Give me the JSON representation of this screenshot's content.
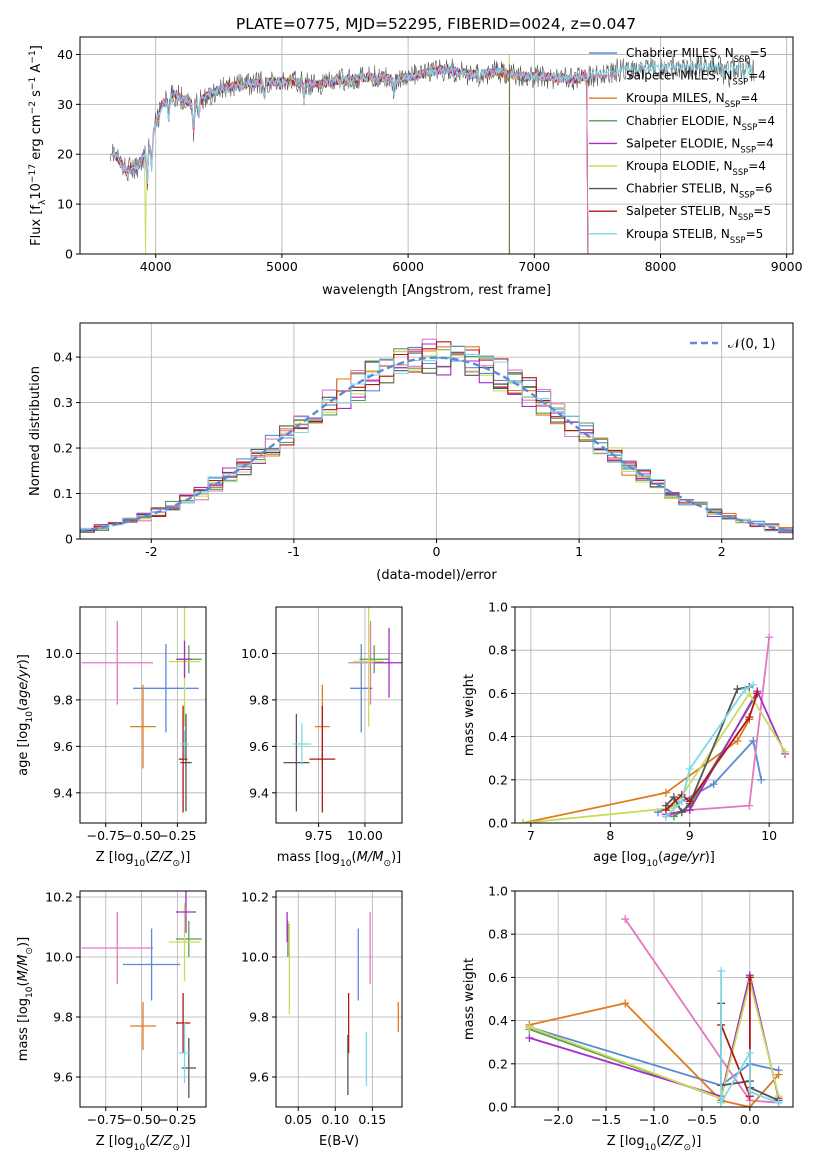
{
  "title": "PLATE=0775, MJD=52295, FIBERID=0024, z=0.047",
  "colors": {
    "chabrier_miles": "#5b8bd6",
    "salpeter_miles": "#e377c2",
    "kroupa_miles": "#e07b1f",
    "chabrier_elodie": "#5a9a5a",
    "salpeter_elodie": "#a52ec4",
    "kroupa_elodie": "#c8dc5a",
    "chabrier_stelib": "#555555",
    "salpeter_stelib": "#b01818",
    "kroupa_stelib": "#7fd8e8",
    "normal": "#5b8bd6"
  },
  "chart_data": [
    {
      "type": "line",
      "panel": "spectrum",
      "xlabel": "wavelength [Angstrom, rest frame]",
      "ylabel": "Flux [fλ10⁻¹⁷ erg cm⁻² s⁻¹ A⁻¹]",
      "xlim": [
        3400,
        9050
      ],
      "ylim": [
        0,
        43.5
      ],
      "xticks": [
        4000,
        5000,
        6000,
        7000,
        8000,
        9000
      ],
      "yticks": [
        0,
        10,
        20,
        30,
        40
      ],
      "legend_position": "right",
      "legend": [
        {
          "label": "Chabrier MILES, N",
          "sub": "SSP",
          "suffix": "=5",
          "color": "chabrier_miles"
        },
        {
          "label": "Salpeter MILES, N",
          "sub": "SSP",
          "suffix": "=4",
          "color": "salpeter_miles"
        },
        {
          "label": "Kroupa MILES, N",
          "sub": "SSP",
          "suffix": "=4",
          "color": "kroupa_miles"
        },
        {
          "label": "Chabrier ELODIE, N",
          "sub": "SSP",
          "suffix": "=4",
          "color": "chabrier_elodie"
        },
        {
          "label": "Salpeter ELODIE, N",
          "sub": "SSP",
          "suffix": "=4",
          "color": "salpeter_elodie"
        },
        {
          "label": "Kroupa ELODIE, N",
          "sub": "SSP",
          "suffix": "=4",
          "color": "kroupa_elodie"
        },
        {
          "label": "Chabrier STELIB, N",
          "sub": "SSP",
          "suffix": "=6",
          "color": "chabrier_stelib"
        },
        {
          "label": "Salpeter STELIB, N",
          "sub": "SSP",
          "suffix": "=5",
          "color": "salpeter_stelib"
        },
        {
          "label": "Kroupa STELIB, N",
          "sub": "SSP",
          "suffix": "=5",
          "color": "kroupa_stelib"
        }
      ],
      "continuum": {
        "x": [
          3650,
          3750,
          3850,
          3950,
          4050,
          4150,
          4300,
          4500,
          4700,
          4900,
          5100,
          5300,
          5500,
          5700,
          5900,
          6100,
          6300,
          6500,
          6700,
          6900,
          7100,
          7300,
          7500,
          7700,
          7900,
          8100,
          8300,
          8500,
          8700
        ],
        "y": [
          21,
          17,
          17,
          22,
          30,
          32,
          30,
          33,
          34,
          34.5,
          34.5,
          34,
          35,
          35.5,
          35,
          36,
          37,
          36,
          36.5,
          35.5,
          35.5,
          35,
          36,
          37,
          37.5,
          37.5,
          37.5,
          37.5,
          37
        ]
      }
    },
    {
      "type": "histogram",
      "panel": "residuals",
      "xlabel": "(data-model)/error",
      "ylabel": "Normed distribution",
      "xlim": [
        -2.5,
        2.5
      ],
      "ylim": [
        0,
        0.475
      ],
      "xticks": [
        -2,
        -1,
        0,
        1,
        2
      ],
      "yticks": [
        0.0,
        0.1,
        0.2,
        0.3,
        0.4
      ],
      "bin_width": 0.1,
      "legend_position": "upper right",
      "reference_curve": {
        "label": "𝒩(0, 1)",
        "color": "normal",
        "style": "dashed"
      }
    },
    {
      "type": "scatter",
      "panel": "age-vs-Z",
      "xlabel": "Z [log₁₀(Z/Z⊙)]",
      "ylabel": "age  [log₁₀(age/yr)]",
      "xlim": [
        -0.93,
        -0.05
      ],
      "ylim": [
        9.27,
        10.2
      ],
      "xticks": [
        -0.75,
        -0.5,
        -0.25
      ],
      "xticklabels": [
        "−0.75",
        "−0.50",
        "−0.25"
      ],
      "yticks": [
        9.4,
        9.6,
        9.8,
        10.0
      ],
      "yticklabels": [
        "9.4",
        "9.6",
        "9.8",
        "10.0"
      ],
      "points": [
        {
          "color": "salpeter_miles",
          "x": -0.67,
          "xerr": 0.25,
          "y": 9.96,
          "yerr": 0.18
        },
        {
          "color": "chabrier_miles",
          "x": -0.33,
          "xerr": 0.23,
          "y": 9.85,
          "yerr": 0.19
        },
        {
          "color": "kroupa_miles",
          "x": -0.49,
          "xerr": 0.09,
          "y": 9.685,
          "yerr": 0.18
        },
        {
          "color": "chabrier_elodie",
          "x": -0.17,
          "xerr": 0.09,
          "y": 9.975,
          "yerr": 0.06
        },
        {
          "color": "kroupa_elodie",
          "x": -0.2,
          "xerr": 0.11,
          "y": 9.965,
          "yerr": 0.28
        },
        {
          "color": "salpeter_elodie",
          "x": -0.2,
          "xerr": 0.05,
          "y": 9.975,
          "yerr": 0.08
        },
        {
          "color": "chabrier_stelib",
          "x": -0.19,
          "xerr": 0.04,
          "y": 9.53,
          "yerr": 0.21
        },
        {
          "color": "salpeter_stelib",
          "x": -0.21,
          "xerr": 0.03,
          "y": 9.545,
          "yerr": 0.23
        },
        {
          "color": "kroupa_stelib",
          "x": -0.2,
          "xerr": 0.03,
          "y": 9.61,
          "yerr": 0.06
        }
      ]
    },
    {
      "type": "scatter",
      "panel": "age-vs-mass",
      "xlabel": "mass [log₁₀(M/M⊙)]",
      "ylabel": "",
      "xlim": [
        9.52,
        10.2
      ],
      "ylim": [
        9.27,
        10.2
      ],
      "xticks": [
        9.75,
        10.0
      ],
      "xticklabels": [
        "9.75",
        "10.00"
      ],
      "yticks": [
        9.4,
        9.6,
        9.8,
        10.0
      ],
      "yticklabels": [
        "9.4",
        "9.6",
        "9.8",
        "10.0"
      ],
      "points": [
        {
          "color": "salpeter_miles",
          "x": 10.03,
          "xerr": 0.12,
          "y": 9.96,
          "yerr": 0.18
        },
        {
          "color": "chabrier_miles",
          "x": 9.98,
          "xerr": 0.06,
          "y": 9.85,
          "yerr": 0.19
        },
        {
          "color": "kroupa_miles",
          "x": 9.77,
          "xerr": 0.04,
          "y": 9.685,
          "yerr": 0.18
        },
        {
          "color": "chabrier_elodie",
          "x": 10.05,
          "xerr": 0.08,
          "y": 9.975,
          "yerr": 0.06
        },
        {
          "color": "kroupa_elodie",
          "x": 10.02,
          "xerr": 0.08,
          "y": 9.965,
          "yerr": 0.28
        },
        {
          "color": "salpeter_elodie",
          "x": 10.13,
          "xerr": 0.08,
          "y": 9.96,
          "yerr": 0.15
        },
        {
          "color": "chabrier_stelib",
          "x": 9.63,
          "xerr": 0.07,
          "y": 9.53,
          "yerr": 0.21
        },
        {
          "color": "salpeter_stelib",
          "x": 9.77,
          "xerr": 0.07,
          "y": 9.545,
          "yerr": 0.23
        },
        {
          "color": "kroupa_stelib",
          "x": 9.66,
          "xerr": 0.05,
          "y": 9.61,
          "yerr": 0.09
        }
      ]
    },
    {
      "type": "line",
      "panel": "weight-vs-age",
      "xlabel": "age  [log₁₀(age/yr)]",
      "ylabel": "mass weight",
      "xlim": [
        6.8,
        10.3
      ],
      "ylim": [
        0,
        1
      ],
      "xticks": [
        7,
        8,
        9,
        10
      ],
      "xticklabels": [
        "7",
        "8",
        "9",
        "10"
      ],
      "yticks": [
        0,
        0.2,
        0.4,
        0.6,
        0.8,
        1.0
      ],
      "yticklabels": [
        "0.0",
        "0.2",
        "0.4",
        "0.6",
        "0.8",
        "1.0"
      ],
      "series": [
        {
          "color": "chabrier_miles",
          "x": [
            8.6,
            8.9,
            9.3,
            9.8,
            9.9
          ],
          "y": [
            0.05,
            0.1,
            0.18,
            0.38,
            0.2
          ]
        },
        {
          "color": "salpeter_miles",
          "x": [
            8.7,
            9.0,
            9.75,
            10.0
          ],
          "y": [
            0.03,
            0.06,
            0.08,
            0.86
          ]
        },
        {
          "color": "kroupa_miles",
          "x": [
            6.9,
            8.7,
            9.6,
            9.75
          ],
          "y": [
            0.0,
            0.14,
            0.38,
            0.48
          ]
        },
        {
          "color": "chabrier_elodie",
          "x": [
            8.8,
            9.0,
            9.85
          ],
          "y": [
            0.03,
            0.08,
            0.6
          ]
        },
        {
          "color": "salpeter_elodie",
          "x": [
            8.7,
            9.0,
            9.85,
            10.2
          ],
          "y": [
            0.04,
            0.06,
            0.61,
            0.32
          ]
        },
        {
          "color": "kroupa_elodie",
          "x": [
            6.9,
            8.8,
            9.75,
            10.2
          ],
          "y": [
            0.0,
            0.07,
            0.6,
            0.33
          ]
        },
        {
          "color": "chabrier_stelib",
          "x": [
            8.7,
            8.8,
            8.9,
            9.0,
            9.6,
            9.75
          ],
          "y": [
            0.08,
            0.12,
            0.05,
            0.09,
            0.62,
            0.63
          ]
        },
        {
          "color": "salpeter_stelib",
          "x": [
            8.7,
            8.9,
            9.0,
            9.75,
            9.85
          ],
          "y": [
            0.06,
            0.13,
            0.1,
            0.49,
            0.6
          ]
        },
        {
          "color": "kroupa_stelib",
          "x": [
            8.7,
            8.9,
            9.0,
            9.7,
            9.8
          ],
          "y": [
            0.03,
            0.1,
            0.25,
            0.62,
            0.64
          ]
        }
      ]
    },
    {
      "type": "scatter",
      "panel": "mass-vs-Z",
      "xlabel": "Z [log₁₀(Z/Z⊙)]",
      "ylabel": "mass [log₁₀(M/M⊙)]",
      "xlim": [
        -0.93,
        -0.05
      ],
      "ylim": [
        9.5,
        10.22
      ],
      "xticks": [
        -0.75,
        -0.5,
        -0.25
      ],
      "xticklabels": [
        "−0.75",
        "−0.50",
        "−0.25"
      ],
      "yticks": [
        9.6,
        9.8,
        10.0,
        10.2
      ],
      "yticklabels": [
        "9.6",
        "9.8",
        "10.0",
        "10.2"
      ],
      "points": [
        {
          "color": "salpeter_miles",
          "x": -0.67,
          "xerr": 0.25,
          "y": 10.03,
          "yerr": 0.12
        },
        {
          "color": "chabrier_miles",
          "x": -0.43,
          "xerr": 0.2,
          "y": 9.975,
          "yerr": 0.12
        },
        {
          "color": "kroupa_miles",
          "x": -0.49,
          "xerr": 0.09,
          "y": 9.77,
          "yerr": 0.08
        },
        {
          "color": "chabrier_elodie",
          "x": -0.17,
          "xerr": 0.09,
          "y": 10.06,
          "yerr": 0.06
        },
        {
          "color": "kroupa_elodie",
          "x": -0.2,
          "xerr": 0.11,
          "y": 10.05,
          "yerr": 0.13
        },
        {
          "color": "salpeter_elodie",
          "x": -0.19,
          "xerr": 0.07,
          "y": 10.15,
          "yerr": 0.07
        },
        {
          "color": "chabrier_stelib",
          "x": -0.17,
          "xerr": 0.05,
          "y": 9.63,
          "yerr": 0.1
        },
        {
          "color": "salpeter_stelib",
          "x": -0.21,
          "xerr": 0.05,
          "y": 9.78,
          "yerr": 0.1
        },
        {
          "color": "kroupa_stelib",
          "x": -0.2,
          "xerr": 0.04,
          "y": 9.68,
          "yerr": 0.1
        }
      ]
    },
    {
      "type": "scatter",
      "panel": "mass-vs-EBV",
      "xlabel": "E(B-V)",
      "ylabel": "",
      "xlim": [
        0.02,
        0.19
      ],
      "ylim": [
        9.5,
        10.22
      ],
      "xticks": [
        0.05,
        0.1,
        0.15
      ],
      "xticklabels": [
        "0.05",
        "0.10",
        "0.15"
      ],
      "yticks": [
        9.6,
        9.8,
        10.0,
        10.2
      ],
      "yticklabels": [
        "9.6",
        "9.8",
        "10.0",
        "10.2"
      ],
      "points": [
        {
          "color": "salpeter_miles",
          "x": 0.147,
          "xerr": 0,
          "y": 10.03,
          "yerr": 0.12
        },
        {
          "color": "chabrier_miles",
          "x": 0.131,
          "xerr": 0,
          "y": 9.975,
          "yerr": 0.12
        },
        {
          "color": "kroupa_miles",
          "x": 0.185,
          "xerr": 0,
          "y": 9.8,
          "yerr": 0.05
        },
        {
          "color": "chabrier_elodie",
          "x": 0.036,
          "xerr": 0,
          "y": 10.06,
          "yerr": 0.06
        },
        {
          "color": "kroupa_elodie",
          "x": 0.038,
          "xerr": 0,
          "y": 9.96,
          "yerr": 0.15
        },
        {
          "color": "salpeter_elodie",
          "x": 0.035,
          "xerr": 0,
          "y": 10.1,
          "yerr": 0.05
        },
        {
          "color": "chabrier_stelib",
          "x": 0.117,
          "xerr": 0,
          "y": 9.64,
          "yerr": 0.1
        },
        {
          "color": "salpeter_stelib",
          "x": 0.118,
          "xerr": 0,
          "y": 9.78,
          "yerr": 0.1
        },
        {
          "color": "kroupa_stelib",
          "x": 0.142,
          "xerr": 0,
          "y": 9.66,
          "yerr": 0.09
        }
      ]
    },
    {
      "type": "line",
      "panel": "weight-vs-Z",
      "xlabel": "Z [log₁₀(Z/Z⊙)]",
      "ylabel": "mass weight",
      "xlim": [
        -2.45,
        0.45
      ],
      "ylim": [
        0,
        1
      ],
      "xticks": [
        -2.0,
        -1.5,
        -1.0,
        -0.5,
        0.0
      ],
      "xticklabels": [
        "−2.0",
        "−1.5",
        "−1.0",
        "−0.5",
        "0.0"
      ],
      "yticks": [
        0,
        0.2,
        0.4,
        0.6,
        0.8,
        1.0
      ],
      "yticklabels": [
        "0.0",
        "0.2",
        "0.4",
        "0.6",
        "0.8",
        "1.0"
      ],
      "series": [
        {
          "color": "chabrier_miles",
          "x": [
            -2.3,
            -0.3,
            0.0,
            0.3
          ],
          "y": [
            0.37,
            0.1,
            0.2,
            0.17
          ]
        },
        {
          "color": "salpeter_miles",
          "x": [
            -1.3,
            0.0,
            0.3
          ],
          "y": [
            0.87,
            0.03,
            0.02
          ]
        },
        {
          "color": "kroupa_miles",
          "x": [
            -2.3,
            -1.3,
            -0.3,
            0.0,
            0.3
          ],
          "y": [
            0.38,
            0.48,
            0.03,
            0.0,
            0.15
          ]
        },
        {
          "color": "chabrier_elodie",
          "x": [
            -2.3,
            -0.3,
            0.0
          ],
          "y": [
            0.36,
            0.04,
            0.6
          ]
        },
        {
          "color": "salpeter_elodie",
          "x": [
            -2.3,
            -0.3,
            0.0,
            0.3
          ],
          "y": [
            0.32,
            0.05,
            0.61,
            0.04
          ]
        },
        {
          "color": "kroupa_elodie",
          "x": [
            -2.3,
            -0.3,
            0.0,
            0.3
          ],
          "y": [
            0.37,
            0.04,
            0.58,
            0.05
          ]
        },
        {
          "color": "chabrier_stelib",
          "x": [
            -0.3,
            -0.3,
            0.0,
            0.0,
            0.3
          ],
          "y": [
            0.48,
            0.1,
            0.12,
            0.09,
            0.03
          ]
        },
        {
          "color": "salpeter_stelib",
          "x": [
            -0.3,
            0.0,
            0.0
          ],
          "y": [
            0.38,
            0.05,
            0.6
          ]
        },
        {
          "color": "kroupa_stelib",
          "x": [
            -0.3,
            -0.3,
            0.0,
            0.0,
            0.3
          ],
          "y": [
            0.63,
            0.02,
            0.25,
            0.07,
            0.02
          ]
        }
      ]
    }
  ]
}
